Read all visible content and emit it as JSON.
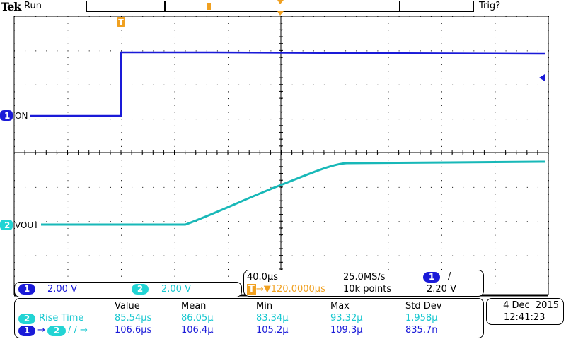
{
  "header": {
    "brand": "Tek",
    "state": "Run",
    "trigger_status": "Trig?"
  },
  "channels": [
    {
      "id": "1",
      "label": "ON",
      "scale": "2.00 V",
      "color": "#1a1ad8"
    },
    {
      "id": "2",
      "label": "VOUT",
      "scale": "2.00 V",
      "color": "#22d4d4"
    }
  ],
  "trigger_marker": "T",
  "timebase": {
    "horizontal": "40.0µs",
    "sample_rate": "25.0MS/s",
    "delay": "120.0000µs",
    "record": "10k points",
    "trigger_source": "1",
    "trigger_slope": "/",
    "trigger_level": "2.20 V"
  },
  "measurements": {
    "headers": [
      "Value",
      "Mean",
      "Min",
      "Max",
      "Std Dev"
    ],
    "rows": [
      {
        "source": "2",
        "name": "Rise Time",
        "values": [
          "85.54µs",
          "86.05µ",
          "83.34µ",
          "93.32µ",
          "1.958µ"
        ]
      },
      {
        "source": "1",
        "target": "2",
        "name": "/ / →",
        "values": [
          "106.6µs",
          "106.4µ",
          "105.2µ",
          "109.3µ",
          "835.7n"
        ]
      }
    ]
  },
  "datetime": {
    "date": "4 Dec  2015",
    "time": "12:41:23"
  }
}
